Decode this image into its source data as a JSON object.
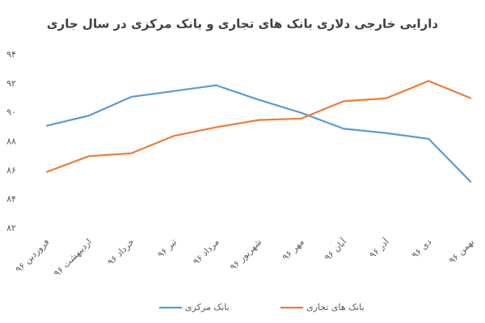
{
  "chart_data": {
    "type": "line",
    "title": "دارایی خارجی دلاری بانک های تجاری و بانک مرکزی در سال جاری",
    "categories": [
      "فروردین ۹۶",
      "اردیبهشت ۹۶",
      "خرداد ۹۶",
      "تیر ۹۶",
      "مرداد ۹۶",
      "شهریور ۹۶",
      "مهر ۹۶",
      "آبان ۹۶",
      "آذر ۹۶",
      "دی ۹۶",
      "بهمن ۹۶"
    ],
    "series": [
      {
        "name": "بانک مرکزی",
        "color": "#5b9bd5",
        "values": [
          89.1,
          89.8,
          91.1,
          91.5,
          91.9,
          90.9,
          90.0,
          88.9,
          88.6,
          88.2,
          85.2
        ]
      },
      {
        "name": "بانک های تجاری",
        "color": "#ed7d31",
        "values": [
          85.9,
          87.0,
          87.2,
          88.4,
          89.0,
          89.5,
          89.6,
          90.8,
          91.0,
          92.2,
          91.0
        ]
      }
    ],
    "ylim": [
      82,
      94
    ],
    "yticks": [
      {
        "value": 82,
        "label": "۸۲"
      },
      {
        "value": 84,
        "label": "۸۴"
      },
      {
        "value": 86,
        "label": "۸۶"
      },
      {
        "value": 88,
        "label": "۸۸"
      },
      {
        "value": 90,
        "label": "۹۰"
      },
      {
        "value": 92,
        "label": "۹۲"
      },
      {
        "value": 94,
        "label": "۹۴"
      }
    ],
    "grid": false,
    "legend": "bottom"
  }
}
